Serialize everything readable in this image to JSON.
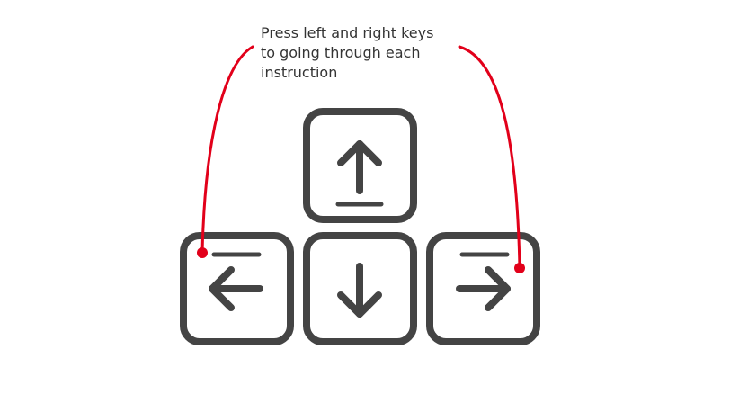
{
  "instruction": {
    "lines": [
      "Press left and right keys",
      "to going through each",
      "instruction"
    ]
  },
  "colors": {
    "key": "#444444",
    "pointer": "#e2001a",
    "text": "#333333",
    "background": "#ffffff"
  },
  "keys": [
    {
      "name": "up-key",
      "icon": "arrow-up-icon"
    },
    {
      "name": "left-key",
      "icon": "arrow-left-icon"
    },
    {
      "name": "down-key",
      "icon": "arrow-down-icon"
    },
    {
      "name": "right-key",
      "icon": "arrow-right-icon"
    }
  ]
}
